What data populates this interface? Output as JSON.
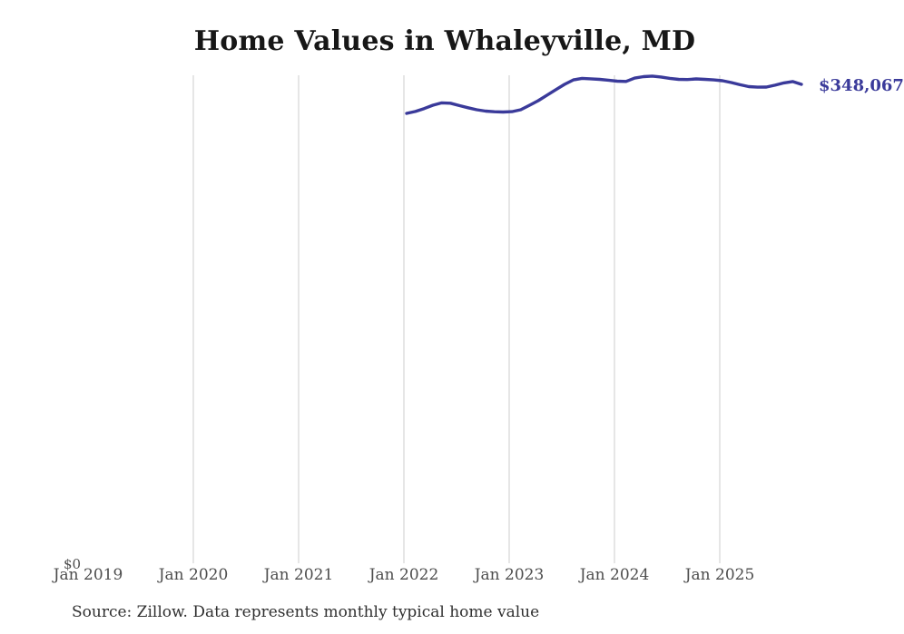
{
  "page": {
    "background_color": "#ffffff"
  },
  "source_note": "Source: Zillow. Data represents monthly typical home value",
  "chart_data": {
    "type": "line",
    "title": "Home Values in Whaleyville, MD",
    "xlabel": "",
    "ylabel": "",
    "y_zero_label": "$0",
    "end_label": "$348,067",
    "end_value": 348067,
    "ylim": [
      0,
      360000
    ],
    "grid": "vertical-gridlines-only",
    "legend": "none",
    "gridline_color": "#cccccc",
    "axis_label_color": "#4d4d4d",
    "line_color": "#3a3a9a",
    "x_tick_labels": [
      "Jan 2019",
      "Jan 2020",
      "Jan 2021",
      "Jan 2022",
      "Jan 2023",
      "Jan 2024",
      "Jan 2025"
    ],
    "series": [
      {
        "name": "Monthly typical home value",
        "color": "#3a3a9a",
        "x": [
          "Jan 2022",
          "Feb 2022",
          "Mar 2022",
          "Apr 2022",
          "May 2022",
          "Jun 2022",
          "Jul 2022",
          "Aug 2022",
          "Sep 2022",
          "Oct 2022",
          "Nov 2022",
          "Dec 2022",
          "Jan 2023",
          "Feb 2023",
          "Mar 2023",
          "Apr 2023",
          "May 2023",
          "Jun 2023",
          "Jul 2023",
          "Aug 2023",
          "Sep 2023",
          "Oct 2023",
          "Nov 2023",
          "Dec 2023",
          "Jan 2024",
          "Feb 2024",
          "Mar 2024",
          "Apr 2024",
          "May 2024",
          "Jun 2024",
          "Jul 2024",
          "Aug 2024",
          "Sep 2024",
          "Oct 2024",
          "Nov 2024",
          "Dec 2024",
          "Jan 2025",
          "Feb 2025",
          "Mar 2025",
          "Apr 2025",
          "May 2025",
          "Jun 2025",
          "Jul 2025",
          "Aug 2025",
          "Sep 2025",
          "Oct 2025"
        ],
        "values": [
          326900,
          328300,
          330400,
          332900,
          334600,
          334300,
          332600,
          331000,
          329600,
          328600,
          328100,
          327900,
          328200,
          329600,
          332800,
          336200,
          340200,
          344200,
          348100,
          351300,
          352400,
          352100,
          351700,
          351100,
          350400,
          350200,
          352600,
          353700,
          354100,
          353400,
          352400,
          351700,
          351600,
          352000,
          351700,
          351300,
          350700,
          349400,
          347800,
          346400,
          346000,
          346100,
          347500,
          349100,
          350100,
          348067
        ]
      }
    ]
  }
}
